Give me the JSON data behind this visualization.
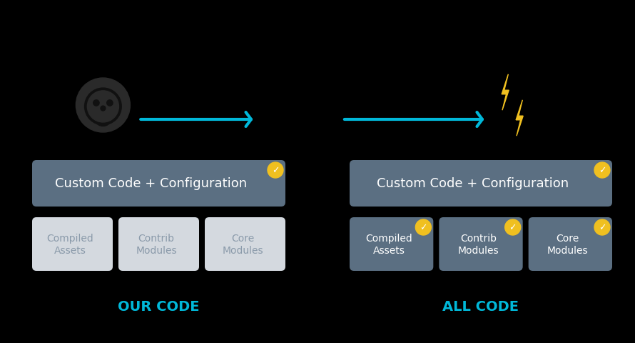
{
  "bg_color": "#000000",
  "left_panel": {
    "main_box": {
      "label": "Custom Code + Configuration",
      "color": "#5b6f82",
      "text_color": "#ffffff",
      "has_check": true
    },
    "sub_boxes": [
      {
        "label": "Compiled\nAssets",
        "color": "#d4d9df",
        "text_color": "#8a9aaa",
        "has_check": false
      },
      {
        "label": "Contrib\nModules",
        "color": "#d4d9df",
        "text_color": "#8a9aaa",
        "has_check": false
      },
      {
        "label": "Core\nModules",
        "color": "#d4d9df",
        "text_color": "#8a9aaa",
        "has_check": false
      }
    ],
    "footer_label": "OUR CODE",
    "footer_color": "#00b8d9"
  },
  "right_panel": {
    "main_box": {
      "label": "Custom Code + Configuration",
      "color": "#5b6f82",
      "text_color": "#ffffff",
      "has_check": true
    },
    "sub_boxes": [
      {
        "label": "Compiled\nAssets",
        "color": "#5b6f82",
        "text_color": "#ffffff",
        "has_check": true
      },
      {
        "label": "Contrib\nModules",
        "color": "#5b6f82",
        "text_color": "#ffffff",
        "has_check": true
      },
      {
        "label": "Core\nModules",
        "color": "#5b6f82",
        "text_color": "#ffffff",
        "has_check": true
      }
    ],
    "footer_label": "ALL CODE",
    "footer_color": "#00b8d9"
  },
  "arrow_color": "#00b8d9",
  "check_bg": "#f0c020",
  "lightning_color": "#f0c020",
  "github_color": "#2a2a2a"
}
